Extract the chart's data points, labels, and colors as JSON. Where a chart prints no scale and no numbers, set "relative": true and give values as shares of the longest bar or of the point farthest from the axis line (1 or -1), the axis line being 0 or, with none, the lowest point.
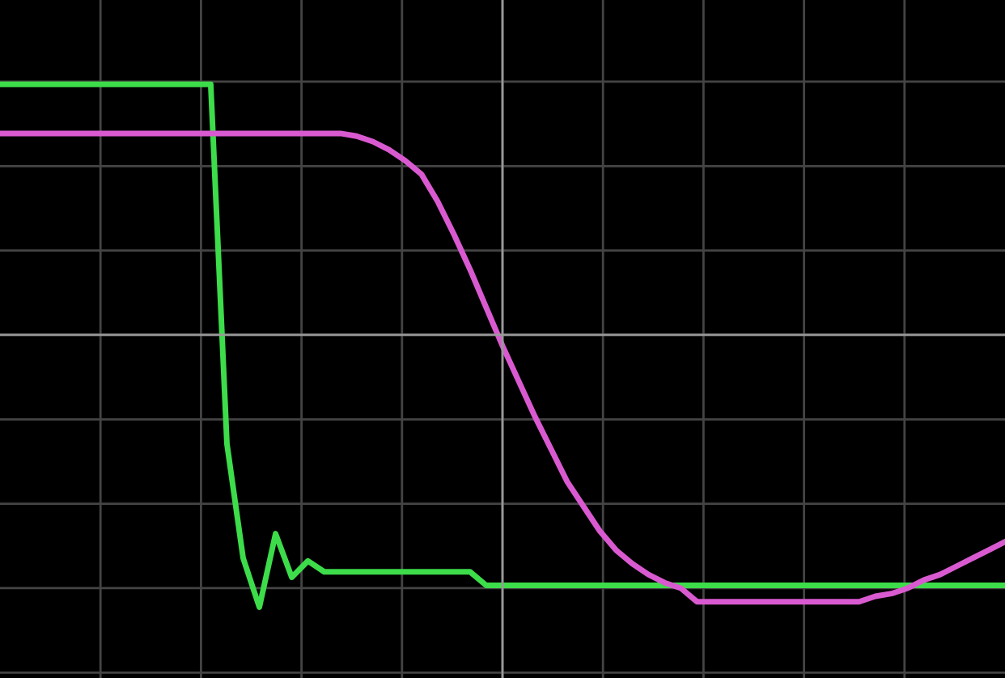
{
  "chart_data": {
    "type": "line",
    "relative": true,
    "grid": true,
    "marker": "none",
    "line_style": "solid",
    "categories": [
      null,
      null,
      null,
      null,
      null,
      null,
      null,
      null,
      null,
      null,
      null,
      null,
      null,
      null,
      null,
      null,
      null,
      null,
      null,
      null,
      null,
      null,
      null,
      null,
      null,
      null,
      null,
      null,
      null,
      null,
      null,
      null,
      null,
      null,
      null,
      null,
      null,
      null,
      null,
      null,
      null,
      null,
      null,
      null,
      null,
      null,
      null,
      null,
      null,
      null,
      null,
      null,
      null,
      null,
      null,
      null,
      null,
      null,
      null,
      null,
      null,
      null,
      null
    ],
    "series": [
      {
        "color": "#3ddc4a",
        "values": [
          0.92,
          0.92,
          0.92,
          0.92,
          0.92,
          0.92,
          0.92,
          0.92,
          0.92,
          0.92,
          0.92,
          0.92,
          0.92,
          0.92,
          -0.4,
          -0.82,
          -1.0,
          -0.73,
          -0.89,
          -0.83,
          -0.87,
          -0.87,
          -0.87,
          -0.87,
          -0.87,
          -0.87,
          -0.87,
          -0.87,
          -0.87,
          -0.87,
          -0.92,
          -0.92,
          -0.92,
          -0.92,
          -0.92,
          -0.92,
          -0.92,
          -0.92,
          -0.92,
          -0.92,
          -0.92,
          -0.92,
          -0.92,
          -0.92,
          -0.92,
          -0.92,
          -0.92,
          -0.92,
          -0.92,
          -0.92,
          -0.92,
          -0.92,
          -0.92,
          -0.92,
          -0.92,
          -0.92,
          -0.92,
          -0.92,
          -0.92,
          -0.92,
          -0.92,
          -0.92,
          -0.92
        ]
      },
      {
        "color": "#d95ad0",
        "values": [
          0.74,
          0.74,
          0.74,
          0.74,
          0.74,
          0.74,
          0.74,
          0.74,
          0.74,
          0.74,
          0.74,
          0.74,
          0.74,
          0.74,
          0.74,
          0.74,
          0.74,
          0.74,
          0.74,
          0.74,
          0.74,
          0.74,
          0.73,
          0.71,
          0.68,
          0.64,
          0.59,
          0.49,
          0.37,
          0.24,
          0.1,
          -0.04,
          -0.17,
          -0.3,
          -0.42,
          -0.54,
          -0.63,
          -0.72,
          -0.79,
          -0.84,
          -0.88,
          -0.91,
          -0.93,
          -0.98,
          -0.98,
          -0.98,
          -0.98,
          -0.98,
          -0.98,
          -0.98,
          -0.98,
          -0.98,
          -0.98,
          -0.98,
          -0.96,
          -0.95,
          -0.93,
          -0.9,
          -0.88,
          -0.85,
          -0.82,
          -0.79,
          -0.76
        ]
      }
    ]
  }
}
